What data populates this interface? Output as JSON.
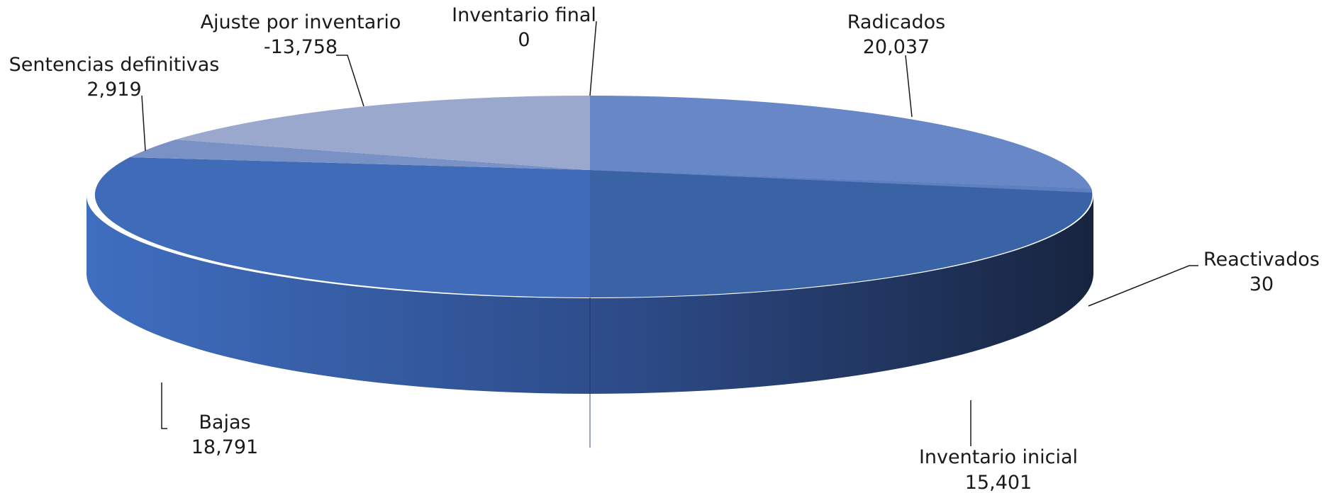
{
  "chart_data": {
    "type": "pie",
    "title": "",
    "slices": [
      {
        "label": "Inventario inicial",
        "value": 15401,
        "display": "15,401",
        "color": "#3A64A6"
      },
      {
        "label": "Radicados",
        "value": 20037,
        "display": "20,037",
        "color": "#6688C6"
      },
      {
        "label": "Reactivados",
        "value": 30,
        "display": "30",
        "color": "#3A62A2"
      },
      {
        "label": "Bajas",
        "value": 18791,
        "display": "18,791",
        "color": "#3F6BB8"
      },
      {
        "label": "Sentencias definitivas",
        "value": 2919,
        "display": "2,919",
        "color": "#7F95C8"
      },
      {
        "label": "Ajuste por inventario",
        "value": -13758,
        "display": "-13,758",
        "color": "#9BA9CE"
      },
      {
        "label": "Inventario final",
        "value": 0,
        "display": "0",
        "color": "#5C7CBF"
      }
    ]
  }
}
